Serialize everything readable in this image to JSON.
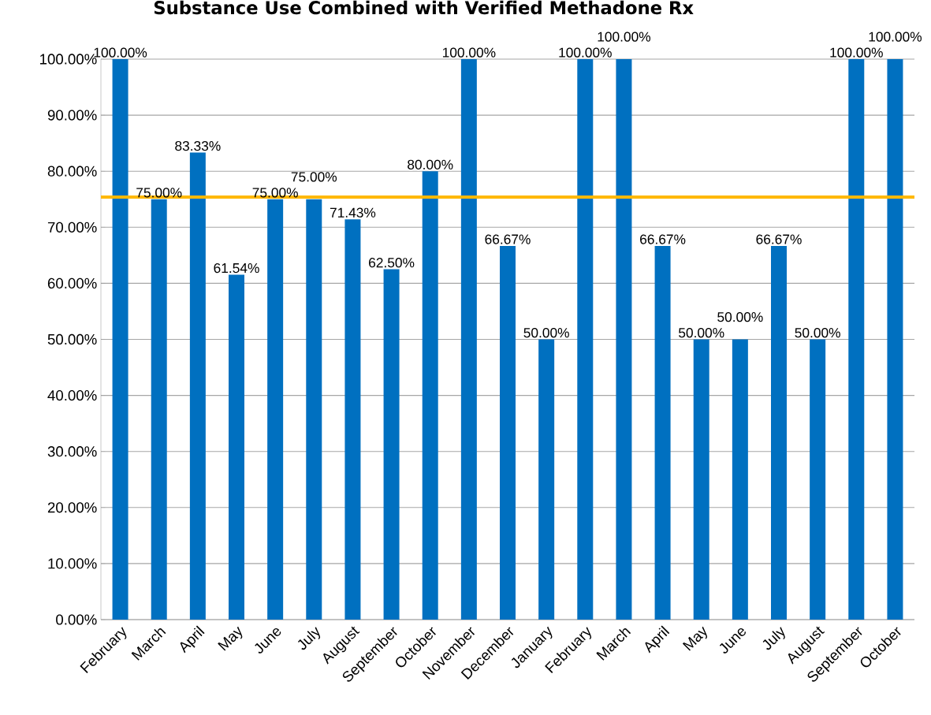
{
  "chart_data": {
    "type": "bar",
    "title": "Substance Use Combined with Verified Methadone Rx",
    "categories": [
      "February",
      "March",
      "April",
      "May",
      "June",
      "July",
      "August",
      "September",
      "October",
      "November",
      "December",
      "January",
      "February",
      "March",
      "April",
      "May",
      "June",
      "July",
      "August",
      "September",
      "October"
    ],
    "values": [
      100,
      75,
      83.33,
      61.54,
      75,
      75,
      71.43,
      62.5,
      80,
      100,
      66.67,
      50,
      100,
      100,
      66.67,
      50,
      50,
      66.67,
      50,
      100,
      100
    ],
    "value_labels": [
      "100.00%",
      "75.00%",
      "83.33%",
      "61.54%",
      "75.00%",
      "75.00%",
      "71.43%",
      "62.50%",
      "80.00%",
      "100.00%",
      "66.67%",
      "50.00%",
      "100.00%",
      "100.00%",
      "66.67%",
      "50.00%",
      "50.00%",
      "66.67%",
      "50.00%",
      "100.00%",
      "100.00%"
    ],
    "color": "#0070c0",
    "ylim": [
      0,
      100
    ],
    "yticks": [
      {
        "value": 0,
        "label": "0.00%"
      },
      {
        "value": 10,
        "label": "10.00%"
      },
      {
        "value": 20,
        "label": "20.00%"
      },
      {
        "value": 30,
        "label": "30.00%"
      },
      {
        "value": 40,
        "label": "40.00%"
      },
      {
        "value": 50,
        "label": "50.00%"
      },
      {
        "value": 60,
        "label": "60.00%"
      },
      {
        "value": 70,
        "label": "70.00%"
      },
      {
        "value": 80,
        "label": "80.00%"
      },
      {
        "value": 90,
        "label": "90.00%"
      },
      {
        "value": 100,
        "label": "100.00%"
      }
    ],
    "ref_lines": [
      {
        "axis": "y",
        "value": 75.4,
        "color": "#ffb800"
      }
    ],
    "grid": "y"
  }
}
